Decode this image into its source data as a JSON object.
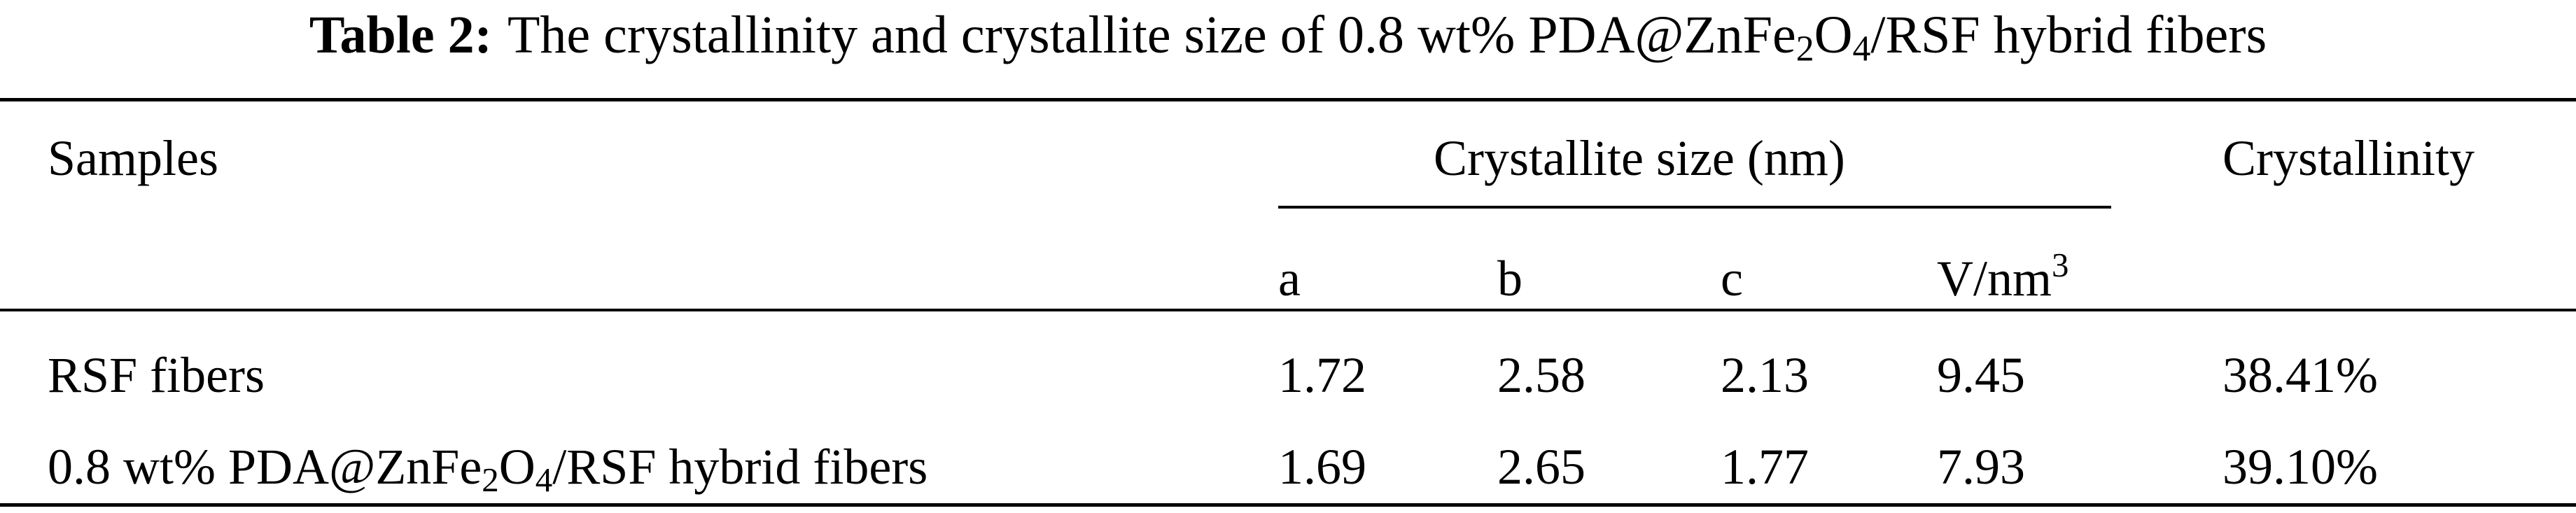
{
  "caption": {
    "label": "Table 2:",
    "text_parts": [
      "The crystallinity and crystallite size of 0.8 wt% PDA@ZnFe",
      "2",
      "O",
      "4",
      "/RSF hybrid fibers"
    ]
  },
  "table": {
    "headers": {
      "samples": "Samples",
      "crystallite_size": "Crystallite size (nm)",
      "crystallinity": "Crystallinity",
      "a": "a",
      "b": "b",
      "c": "c",
      "v_parts": [
        "V/nm",
        "3"
      ]
    },
    "rows": [
      {
        "sample_parts": [
          "RSF fibers"
        ],
        "a": "1.72",
        "b": "2.58",
        "c": "2.13",
        "v": "9.45",
        "crystallinity": "38.41%"
      },
      {
        "sample_parts": [
          "0.8 wt% PDA@ZnFe",
          "2",
          "O",
          "4",
          "/RSF hybrid fibers"
        ],
        "a": "1.69",
        "b": "2.65",
        "c": "1.77",
        "v": "7.93",
        "crystallinity": "39.10%"
      }
    ]
  }
}
